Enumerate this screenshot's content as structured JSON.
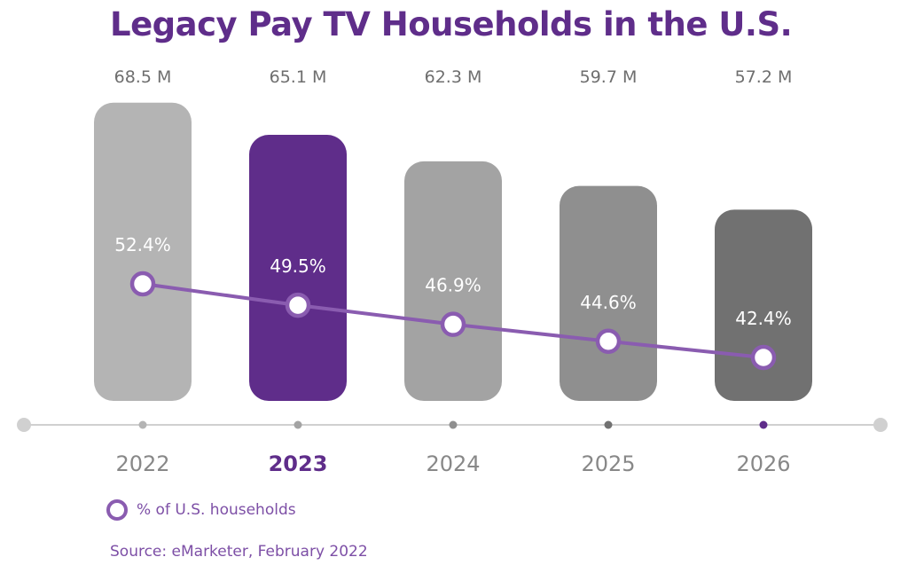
{
  "chart_data": {
    "type": "bar",
    "title": "Legacy Pay TV Households in the U.S.",
    "categories": [
      "2022",
      "2023",
      "2024",
      "2025",
      "2026"
    ],
    "highlight_category": "2023",
    "series": [
      {
        "name": "Legacy Pay TV households",
        "type": "bar",
        "values": [
          68.5,
          65.1,
          62.3,
          59.7,
          57.2
        ],
        "value_labels": [
          "68.5 M",
          "65.1 M",
          "62.3 M",
          "59.7 M",
          "57.2 M"
        ],
        "bar_colors": [
          "#b4b4b4",
          "#5f2d8a",
          "#a3a3a3",
          "#8f8f8f",
          "#717171"
        ],
        "ylim": [
          0,
          72
        ]
      },
      {
        "name": "% of U.S. households",
        "type": "line",
        "values": [
          52.4,
          49.5,
          46.9,
          44.6,
          42.4
        ],
        "value_labels": [
          "52.4%",
          "49.5%",
          "46.9%",
          "44.6%",
          "42.4%"
        ],
        "color": "#8a5cb0",
        "ylim": [
          36.5,
          56.4
        ]
      }
    ],
    "xlabel": "",
    "ylabel": "",
    "grid": false,
    "legend": "bottom-left",
    "axis_dot_colors": [
      "#b4b4b4",
      "#a3a3a3",
      "#8f8f8f",
      "#717171",
      "#5f2d8a"
    ]
  },
  "colors": {
    "brand": "#5f2d8a",
    "accent": "#8a5cb0",
    "axis": "#d0d0d0",
    "value_label": "#6e6e6e",
    "year_label": "#888888"
  },
  "legend": {
    "label": "% of U.S. households",
    "marker_icon": "ring-marker-icon"
  },
  "source": "Source: eMarketer, February 2022"
}
